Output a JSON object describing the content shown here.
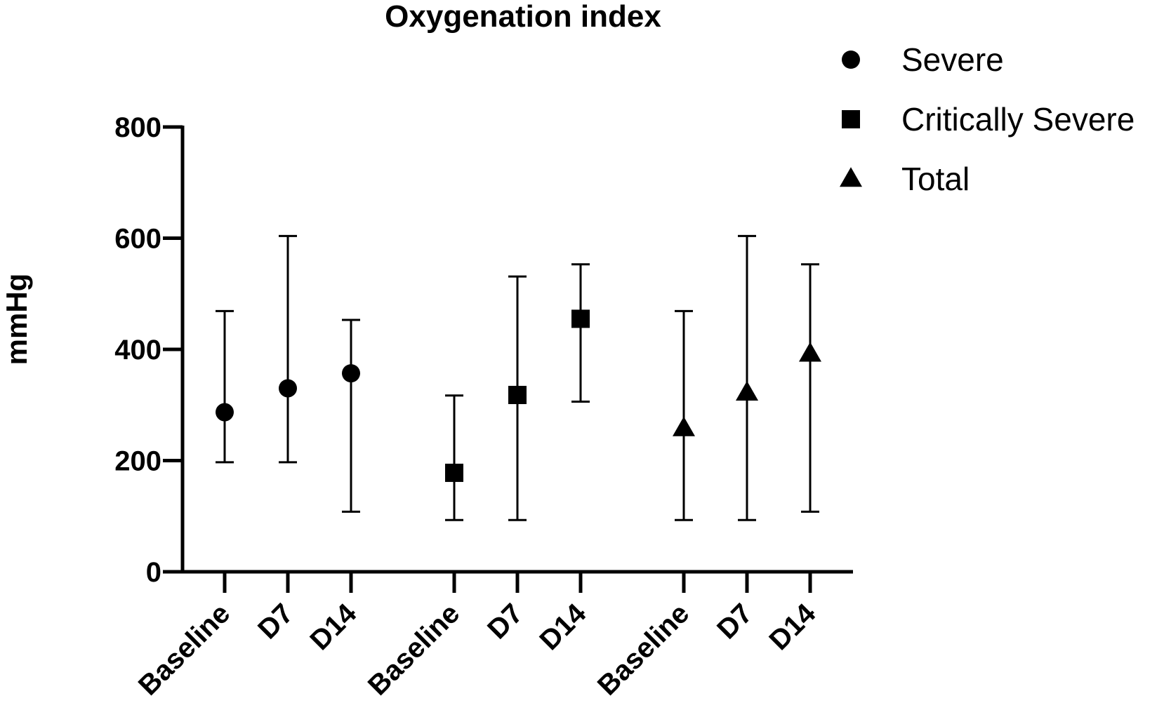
{
  "chart_data": {
    "type": "scatter",
    "title": "Oxygenation index",
    "xlabel": "",
    "ylabel": "mmHg",
    "ylim": [
      0,
      800
    ],
    "yticks": [
      0,
      200,
      400,
      600,
      800
    ],
    "grid": false,
    "legend_position": "top-right",
    "categories": [
      "Baseline",
      "D7",
      "D14"
    ],
    "series": [
      {
        "name": "Severe",
        "marker": "circle",
        "values": [
          287,
          330,
          357
        ],
        "err_low": [
          197,
          197,
          108
        ],
        "err_high": [
          469,
          604,
          453
        ]
      },
      {
        "name": "Critically Severe",
        "marker": "square",
        "values": [
          178,
          318,
          455
        ],
        "err_low": [
          93,
          93,
          306
        ],
        "err_high": [
          317,
          531,
          553
        ]
      },
      {
        "name": "Total",
        "marker": "triangle",
        "values": [
          258,
          322,
          392
        ],
        "err_low": [
          93,
          93,
          108
        ],
        "err_high": [
          469,
          604,
          553
        ]
      }
    ],
    "colors": {
      "marker": "#000000",
      "axis": "#000000"
    }
  }
}
